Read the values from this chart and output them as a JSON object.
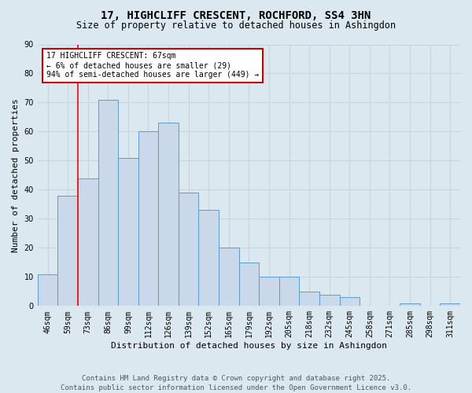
{
  "title": "17, HIGHCLIFF CRESCENT, ROCHFORD, SS4 3HN",
  "subtitle": "Size of property relative to detached houses in Ashingdon",
  "xlabel": "Distribution of detached houses by size in Ashingdon",
  "ylabel": "Number of detached properties",
  "footnote1": "Contains HM Land Registry data © Crown copyright and database right 2025.",
  "footnote2": "Contains public sector information licensed under the Open Government Licence v3.0.",
  "bar_labels": [
    "46sqm",
    "59sqm",
    "73sqm",
    "86sqm",
    "99sqm",
    "112sqm",
    "126sqm",
    "139sqm",
    "152sqm",
    "165sqm",
    "179sqm",
    "192sqm",
    "205sqm",
    "218sqm",
    "232sqm",
    "245sqm",
    "258sqm",
    "271sqm",
    "285sqm",
    "298sqm",
    "311sqm"
  ],
  "bar_values": [
    11,
    38,
    44,
    71,
    51,
    60,
    63,
    39,
    33,
    20,
    15,
    10,
    10,
    5,
    4,
    3,
    0,
    0,
    1,
    0,
    1
  ],
  "bar_color": "#c9d9ea",
  "bar_edge_color": "#5b9bd5",
  "red_line_x": 1.5,
  "annotation_line1": "17 HIGHCLIFF CRESCENT: 67sqm",
  "annotation_line2": "← 6% of detached houses are smaller (29)",
  "annotation_line3": "94% of semi-detached houses are larger (449) →",
  "annotation_box_color": "#ffffff",
  "annotation_box_edge_color": "#cc0000",
  "ylim": [
    0,
    90
  ],
  "yticks": [
    0,
    10,
    20,
    30,
    40,
    50,
    60,
    70,
    80,
    90
  ],
  "grid_color": "#c8d4e0",
  "bg_color": "#dce8f0",
  "title_fontsize": 10,
  "subtitle_fontsize": 8.5,
  "axis_label_fontsize": 8,
  "tick_fontsize": 7,
  "annotation_fontsize": 7,
  "footnote_fontsize": 6.5
}
